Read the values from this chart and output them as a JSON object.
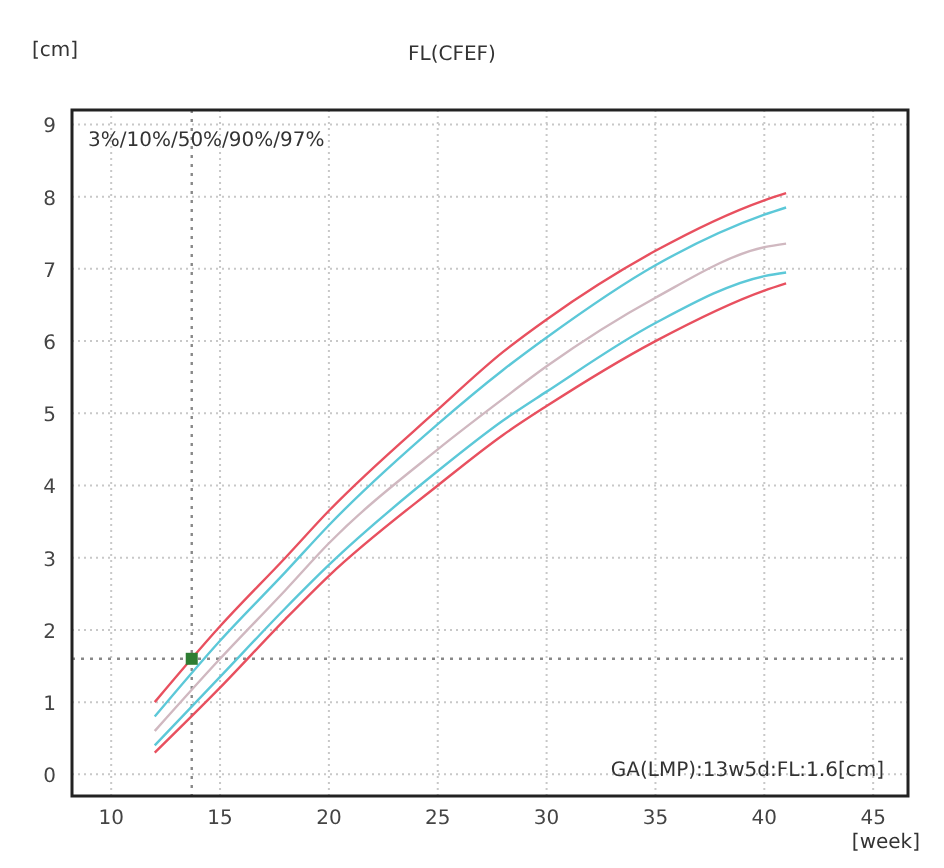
{
  "chart_data": {
    "type": "line",
    "title": "FL(CFEF)",
    "xlabel": "[week]",
    "ylabel": "[cm]",
    "xlim": [
      8.2,
      46.6
    ],
    "ylim": [
      -0.3,
      9.2
    ],
    "xticks": [
      10,
      15,
      20,
      25,
      30,
      35,
      40,
      45
    ],
    "yticks": [
      0,
      1,
      2,
      3,
      4,
      5,
      6,
      7,
      8,
      9
    ],
    "grid": true,
    "marker": "none",
    "line_style": "solid",
    "x": [
      12,
      15,
      18,
      20,
      25,
      28,
      30,
      35,
      40,
      41
    ],
    "series": [
      {
        "color": "#e8505f",
        "values": [
          1.0,
          2.05,
          3.0,
          3.65,
          5.05,
          5.85,
          6.3,
          7.25,
          7.95,
          8.05
        ]
      },
      {
        "color": "#5cc8d8",
        "values": [
          0.8,
          1.85,
          2.8,
          3.45,
          4.85,
          5.6,
          6.05,
          7.05,
          7.75,
          7.85
        ]
      },
      {
        "color": "#d0b8c0",
        "values": [
          0.6,
          1.6,
          2.55,
          3.2,
          4.5,
          5.2,
          5.65,
          6.6,
          7.3,
          7.35
        ]
      },
      {
        "color": "#5cc8d8",
        "values": [
          0.4,
          1.35,
          2.3,
          2.9,
          4.2,
          4.9,
          5.3,
          6.25,
          6.9,
          6.95
        ]
      },
      {
        "color": "#e8505f",
        "values": [
          0.3,
          1.2,
          2.15,
          2.75,
          4.0,
          4.7,
          5.1,
          6.0,
          6.7,
          6.8
        ]
      },
      {
        "type": "scatter",
        "marker": "square",
        "color": "#2e7d32",
        "x": [
          13.7
        ],
        "values": [
          1.6
        ]
      }
    ],
    "ref_lines": [
      {
        "axis": "x",
        "value": 13.7,
        "line_style": "dotted",
        "color": "#888888"
      },
      {
        "axis": "y",
        "value": 1.6,
        "line_style": "dotted",
        "color": "#888888"
      }
    ],
    "annotations": [
      "3%/10%/50%/90%/97%",
      "GA(LMP):13w5d:FL:1.6[cm]"
    ]
  }
}
